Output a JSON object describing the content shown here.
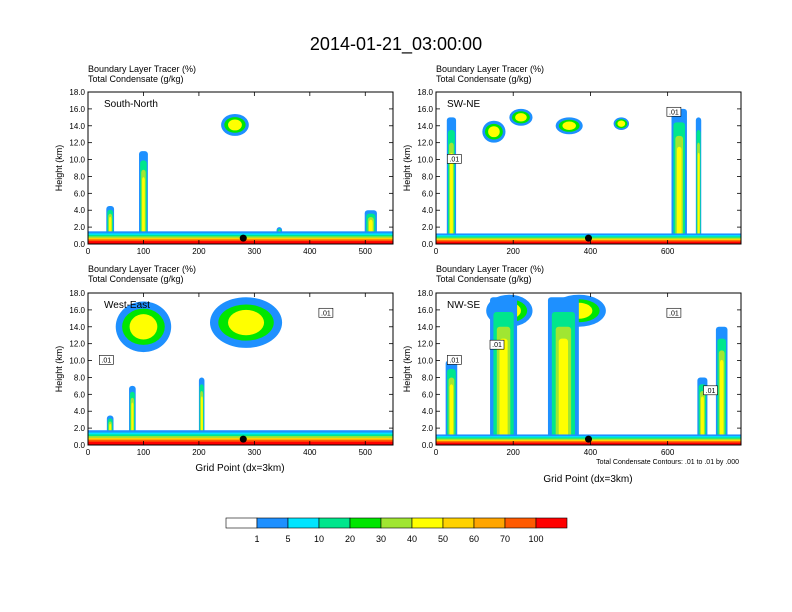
{
  "figure": {
    "title": "2014-01-21_03:00:00",
    "contour_note": "Total Condensate Contours: .01 to .01 by .000",
    "x_axis_label": "Grid Point (dx=3km)"
  },
  "chart_data": [
    {
      "type": "heatmap",
      "panel": "top-left",
      "subtitle_line1": "Boundary Layer Tracer   (%)",
      "subtitle_line2": "Total Condensate   (g/kg)",
      "label": "South-North",
      "ylabel": "Height (km)",
      "xlim": [
        0,
        550
      ],
      "ylim": [
        0,
        18
      ],
      "x_ticks": [
        "0",
        "100",
        "200",
        "300",
        "400",
        "500"
      ],
      "y_ticks": [
        "0.0",
        "2.0",
        "4.0",
        "6.0",
        "8.0",
        "10.0",
        "12.0",
        "14.0",
        "16.0",
        "18.0"
      ],
      "contour_labels": [],
      "marker_x": 280
    },
    {
      "type": "heatmap",
      "panel": "top-right",
      "subtitle_line1": "Boundary Layer Tracer   (%)",
      "subtitle_line2": "Total Condensate   (g/kg)",
      "label": "SW-NE",
      "ylabel": "Height (km)",
      "xlim": [
        0,
        790
      ],
      "ylim": [
        0,
        18
      ],
      "x_ticks": [
        "0",
        "200",
        "400",
        "600"
      ],
      "y_ticks": [
        "0.0",
        "2.0",
        "4.0",
        "6.0",
        "8.0",
        "10.0",
        "12.0",
        "14.0",
        "16.0",
        "18.0"
      ],
      "contour_labels": [
        ".01",
        ".01"
      ],
      "marker_x": 395
    },
    {
      "type": "heatmap",
      "panel": "bottom-left",
      "subtitle_line1": "Boundary Layer Tracer   (%)",
      "subtitle_line2": "Total Condensate   (g/kg)",
      "label": "West-East",
      "ylabel": "Height (km)",
      "xlim": [
        0,
        550
      ],
      "ylim": [
        0,
        18
      ],
      "x_ticks": [
        "0",
        "100",
        "200",
        "300",
        "400",
        "500"
      ],
      "y_ticks": [
        "0.0",
        "2.0",
        "4.0",
        "6.0",
        "8.0",
        "10.0",
        "12.0",
        "14.0",
        "16.0",
        "18.0"
      ],
      "contour_labels": [
        ".01",
        ".01"
      ],
      "marker_x": 280
    },
    {
      "type": "heatmap",
      "panel": "bottom-right",
      "subtitle_line1": "Boundary Layer Tracer   (%)",
      "subtitle_line2": "Total Condensate   (g/kg)",
      "label": "NW-SE",
      "ylabel": "Height (km)",
      "xlim": [
        0,
        790
      ],
      "ylim": [
        0,
        18
      ],
      "x_ticks": [
        "0",
        "200",
        "400",
        "600"
      ],
      "y_ticks": [
        "0.0",
        "2.0",
        "4.0",
        "6.0",
        "8.0",
        "10.0",
        "12.0",
        "14.0",
        "16.0",
        "18.0"
      ],
      "contour_labels": [
        ".01",
        ".01",
        ".01",
        ".01"
      ],
      "marker_x": 395
    }
  ],
  "colorbar": {
    "colors": [
      "#ffffff",
      "#1e90ff",
      "#00e5ff",
      "#00e68c",
      "#00e600",
      "#a0e632",
      "#ffff00",
      "#ffd200",
      "#ffa500",
      "#ff5a00",
      "#ff0000"
    ],
    "labels": [
      "1",
      "5",
      "10",
      "20",
      "30",
      "40",
      "50",
      "60",
      "70",
      "100"
    ]
  }
}
